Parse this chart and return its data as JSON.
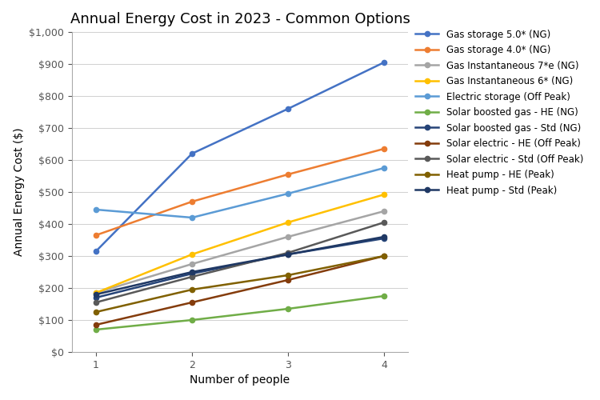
{
  "title": "Annual Energy Cost in 2023 - Common Options",
  "xlabel": "Number of people",
  "ylabel": "Annual Energy Cost ($)",
  "x": [
    1,
    2,
    3,
    4
  ],
  "series": [
    {
      "label": "Gas storage 5.0* (NG)",
      "color": "#4472C4",
      "values": [
        315,
        620,
        760,
        905
      ],
      "marker": "o",
      "linewidth": 1.8
    },
    {
      "label": "Gas storage 4.0* (NG)",
      "color": "#ED7D31",
      "values": [
        365,
        470,
        555,
        635
      ],
      "marker": "o",
      "linewidth": 1.8
    },
    {
      "label": "Gas Instantaneous 7*e (NG)",
      "color": "#A5A5A5",
      "values": [
        185,
        275,
        360,
        440
      ],
      "marker": "o",
      "linewidth": 1.8
    },
    {
      "label": "Gas Instantaneous 6* (NG)",
      "color": "#FFC000",
      "values": [
        185,
        305,
        405,
        492
      ],
      "marker": "o",
      "linewidth": 1.8
    },
    {
      "label": "Electric storage (Off Peak)",
      "color": "#5B9BD5",
      "values": [
        445,
        420,
        495,
        575
      ],
      "marker": "o",
      "linewidth": 1.8
    },
    {
      "label": "Solar boosted gas - HE (NG)",
      "color": "#70AD47",
      "values": [
        70,
        100,
        135,
        175
      ],
      "marker": "o",
      "linewidth": 1.8
    },
    {
      "label": "Solar boosted gas - Std (NG)",
      "color": "#264478",
      "values": [
        170,
        245,
        305,
        355
      ],
      "marker": "o",
      "linewidth": 1.8
    },
    {
      "label": "Solar electric - HE (Off Peak)",
      "color": "#843C0C",
      "values": [
        85,
        155,
        225,
        300
      ],
      "marker": "o",
      "linewidth": 1.8
    },
    {
      "label": "Solar electric - Std (Off Peak)",
      "color": "#595959",
      "values": [
        155,
        235,
        310,
        405
      ],
      "marker": "o",
      "linewidth": 1.8
    },
    {
      "label": "Heat pump - HE (Peak)",
      "color": "#806000",
      "values": [
        125,
        195,
        240,
        300
      ],
      "marker": "o",
      "linewidth": 1.8
    },
    {
      "label": "Heat pump - Std (Peak)",
      "color": "#1F3864",
      "values": [
        180,
        250,
        305,
        360
      ],
      "marker": "o",
      "linewidth": 1.8
    }
  ],
  "ylim": [
    0,
    1000
  ],
  "yticks": [
    0,
    100,
    200,
    300,
    400,
    500,
    600,
    700,
    800,
    900,
    1000
  ],
  "xticks": [
    1,
    2,
    3,
    4
  ],
  "background_color": "#FFFFFF",
  "grid_color": "#D0D0D0",
  "title_fontsize": 13,
  "axis_label_fontsize": 10,
  "tick_fontsize": 9,
  "legend_fontsize": 8.5
}
